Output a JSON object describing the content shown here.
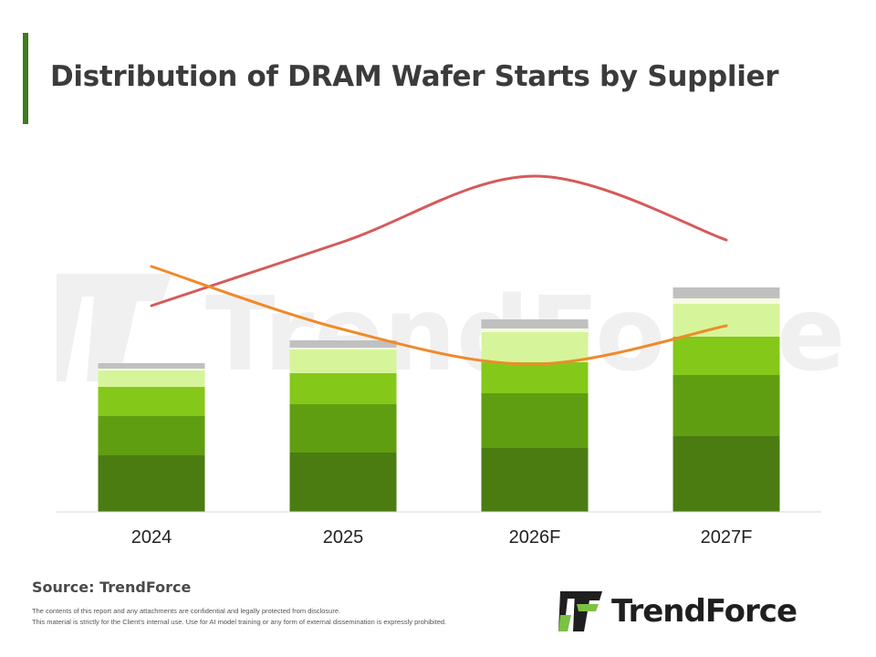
{
  "title": "Distribution of DRAM Wafer Starts by Supplier",
  "source": "Source: TrendForce",
  "disclaimer": [
    "The contents of this report and any attachments are confidential and legally protected from disclosure.",
    "This material is strictly for the Client's internal use. Use for AI model training or any form of external dissemination is expressly prohibited."
  ],
  "logo": {
    "brand": "TrendForce",
    "watermark": "TrendForce"
  },
  "colors": {
    "accent": "#3f7a1f",
    "seg1": "#4a7c12",
    "seg2": "#5f9e10",
    "seg3": "#84c81a",
    "seg4": "#d6f59a",
    "seg5": "#f4fbe2",
    "seg6": "#c0c0c0",
    "line_red": "#d65a5a",
    "line_orange": "#ef8a2a",
    "axis": "#d9d9d9"
  },
  "chart_data": {
    "type": "bar",
    "stacked": true,
    "categories": [
      "2024",
      "2025",
      "2026F",
      "2027F"
    ],
    "series": [
      {
        "values": [
          62,
          65,
          70,
          83
        ]
      },
      {
        "values": [
          43,
          53,
          60,
          67
        ]
      },
      {
        "values": [
          32,
          34,
          34,
          42
        ]
      },
      {
        "values": [
          18,
          26,
          33,
          36
        ]
      },
      {
        "values": [
          2,
          2,
          4,
          6
        ]
      },
      {
        "values": [
          6,
          8,
          10,
          12
        ]
      }
    ],
    "lines": [
      {
        "color": "red",
        "values": [
          226,
          296,
          368,
          298
        ]
      },
      {
        "color": "orange",
        "values": [
          269,
          200,
          162,
          204
        ]
      }
    ],
    "ylim": [
      0,
      400
    ],
    "grid": false,
    "legend": "none",
    "xlabel": "",
    "ylabel": ""
  }
}
